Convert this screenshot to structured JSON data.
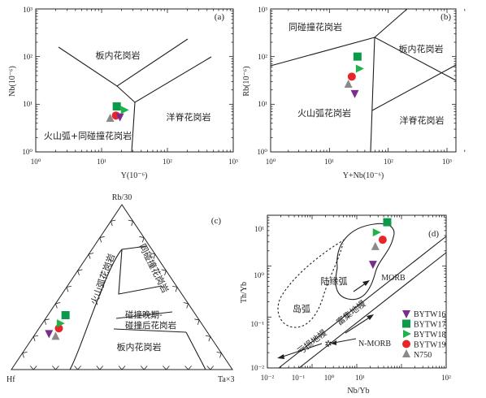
{
  "chart_data": [
    {
      "panel": "(a)",
      "type": "scatter",
      "scale": "log-log",
      "xlabel": "Y(10⁻⁶)",
      "ylabel": "Nb(10⁻⁶)",
      "xlim": [
        1,
        1000
      ],
      "ylim": [
        1,
        1000
      ],
      "x_ticks": [
        "10⁰",
        "10¹",
        "10²",
        "10³"
      ],
      "y_ticks": [
        "10⁰",
        "10¹",
        "10²",
        "10³"
      ],
      "field_labels": [
        "板内花岗岩",
        "洋脊花岗岩",
        "火山弧+同碰撞花岗岩"
      ],
      "series": [
        {
          "name": "BYTW16",
          "x": [
            19
          ],
          "y": [
            5.5
          ]
        },
        {
          "name": "BYTW17",
          "x": [
            17
          ],
          "y": [
            9
          ]
        },
        {
          "name": "BYTW18",
          "x": [
            22
          ],
          "y": [
            7.6
          ]
        },
        {
          "name": "BYTW19",
          "x": [
            16.5
          ],
          "y": [
            5.8
          ]
        },
        {
          "name": "N750",
          "x": [
            13.5
          ],
          "y": [
            5
          ]
        }
      ]
    },
    {
      "panel": "(b)",
      "type": "scatter",
      "scale": "log-log",
      "xlabel": "Y+Nb(10⁻⁶)",
      "ylabel": "Rb(10⁻⁶)",
      "xlim": [
        1,
        2000
      ],
      "ylim": [
        1,
        1000
      ],
      "x_ticks": [
        "10⁰",
        "10¹",
        "10²",
        "10³"
      ],
      "y_ticks": [
        "10⁰",
        "10¹",
        "10²",
        "10³"
      ],
      "field_labels": [
        "同碰撞花岗岩",
        "板内花岗岩",
        "火山弧花岗岩",
        "洋脊花岗岩"
      ],
      "series": [
        {
          "name": "BYTW16",
          "x": [
            27
          ],
          "y": [
            17
          ]
        },
        {
          "name": "BYTW17",
          "x": [
            30
          ],
          "y": [
            100
          ]
        },
        {
          "name": "BYTW18",
          "x": [
            32
          ],
          "y": [
            56
          ]
        },
        {
          "name": "BYTW19",
          "x": [
            24
          ],
          "y": [
            38
          ]
        },
        {
          "name": "N750",
          "x": [
            21
          ],
          "y": [
            26
          ]
        }
      ]
    },
    {
      "panel": "(c)",
      "type": "ternary",
      "apices": {
        "top": "Rb/30",
        "left": "Hf",
        "right": "Ta×3"
      },
      "field_labels": [
        "火山弧花岗岩",
        "同碰撞花岗岩",
        "碰撞晚期-碰撞后花岗岩",
        "板内花岗岩"
      ],
      "series": [
        {
          "name": "BYTW16",
          "a": 0.22,
          "b": 0.72,
          "c": 0.06
        },
        {
          "name": "BYTW17",
          "a": 0.33,
          "b": 0.59,
          "c": 0.08
        },
        {
          "name": "BYTW18",
          "a": 0.28,
          "b": 0.64,
          "c": 0.08
        },
        {
          "name": "BYTW19",
          "a": 0.25,
          "b": 0.66,
          "c": 0.09
        },
        {
          "name": "N750",
          "a": 0.2,
          "b": 0.7,
          "c": 0.1
        }
      ]
    },
    {
      "panel": "(d)",
      "type": "scatter",
      "scale": "log-log",
      "xlabel": "Nb/Yb",
      "ylabel": "Th/Yb",
      "xlim": [
        0.01,
        100
      ],
      "ylim": [
        0.01,
        10
      ],
      "x_ticks": [
        "10⁻²",
        "10⁻¹",
        "10⁰",
        "10¹",
        "10²"
      ],
      "y_ticks": [
        "10⁻²",
        "10⁻¹",
        "10⁰",
        "10¹"
      ],
      "field_labels": [
        "陆缘弧",
        "岛弧",
        "亏损地幔",
        "富集地幔",
        "MORB",
        "N-MORB"
      ],
      "series": [
        {
          "name": "BYTW16",
          "x": [
            2.3
          ],
          "y": [
            1.1
          ]
        },
        {
          "name": "BYTW17",
          "x": [
            4.8
          ],
          "y": [
            7.3
          ]
        },
        {
          "name": "BYTW18",
          "x": [
            2.7
          ],
          "y": [
            4.6
          ]
        },
        {
          "name": "BYTW19",
          "x": [
            3.8
          ],
          "y": [
            3.3
          ]
        },
        {
          "name": "N750",
          "x": [
            2.6
          ],
          "y": [
            2.4
          ]
        }
      ]
    }
  ],
  "legend": {
    "placement": "bottom-right of panel (d)",
    "items": [
      {
        "name": "BYTW16",
        "marker": "triangle-down",
        "color": "#7b2d8e"
      },
      {
        "name": "BYTW17",
        "marker": "square",
        "color": "#0a9a4a"
      },
      {
        "name": "BYTW18",
        "marker": "triangle-right",
        "color": "#22b24c"
      },
      {
        "name": "BYTW19",
        "marker": "circle",
        "color": "#e8262a"
      },
      {
        "name": "N750",
        "marker": "triangle-up",
        "color": "#8a8a8a"
      }
    ]
  }
}
